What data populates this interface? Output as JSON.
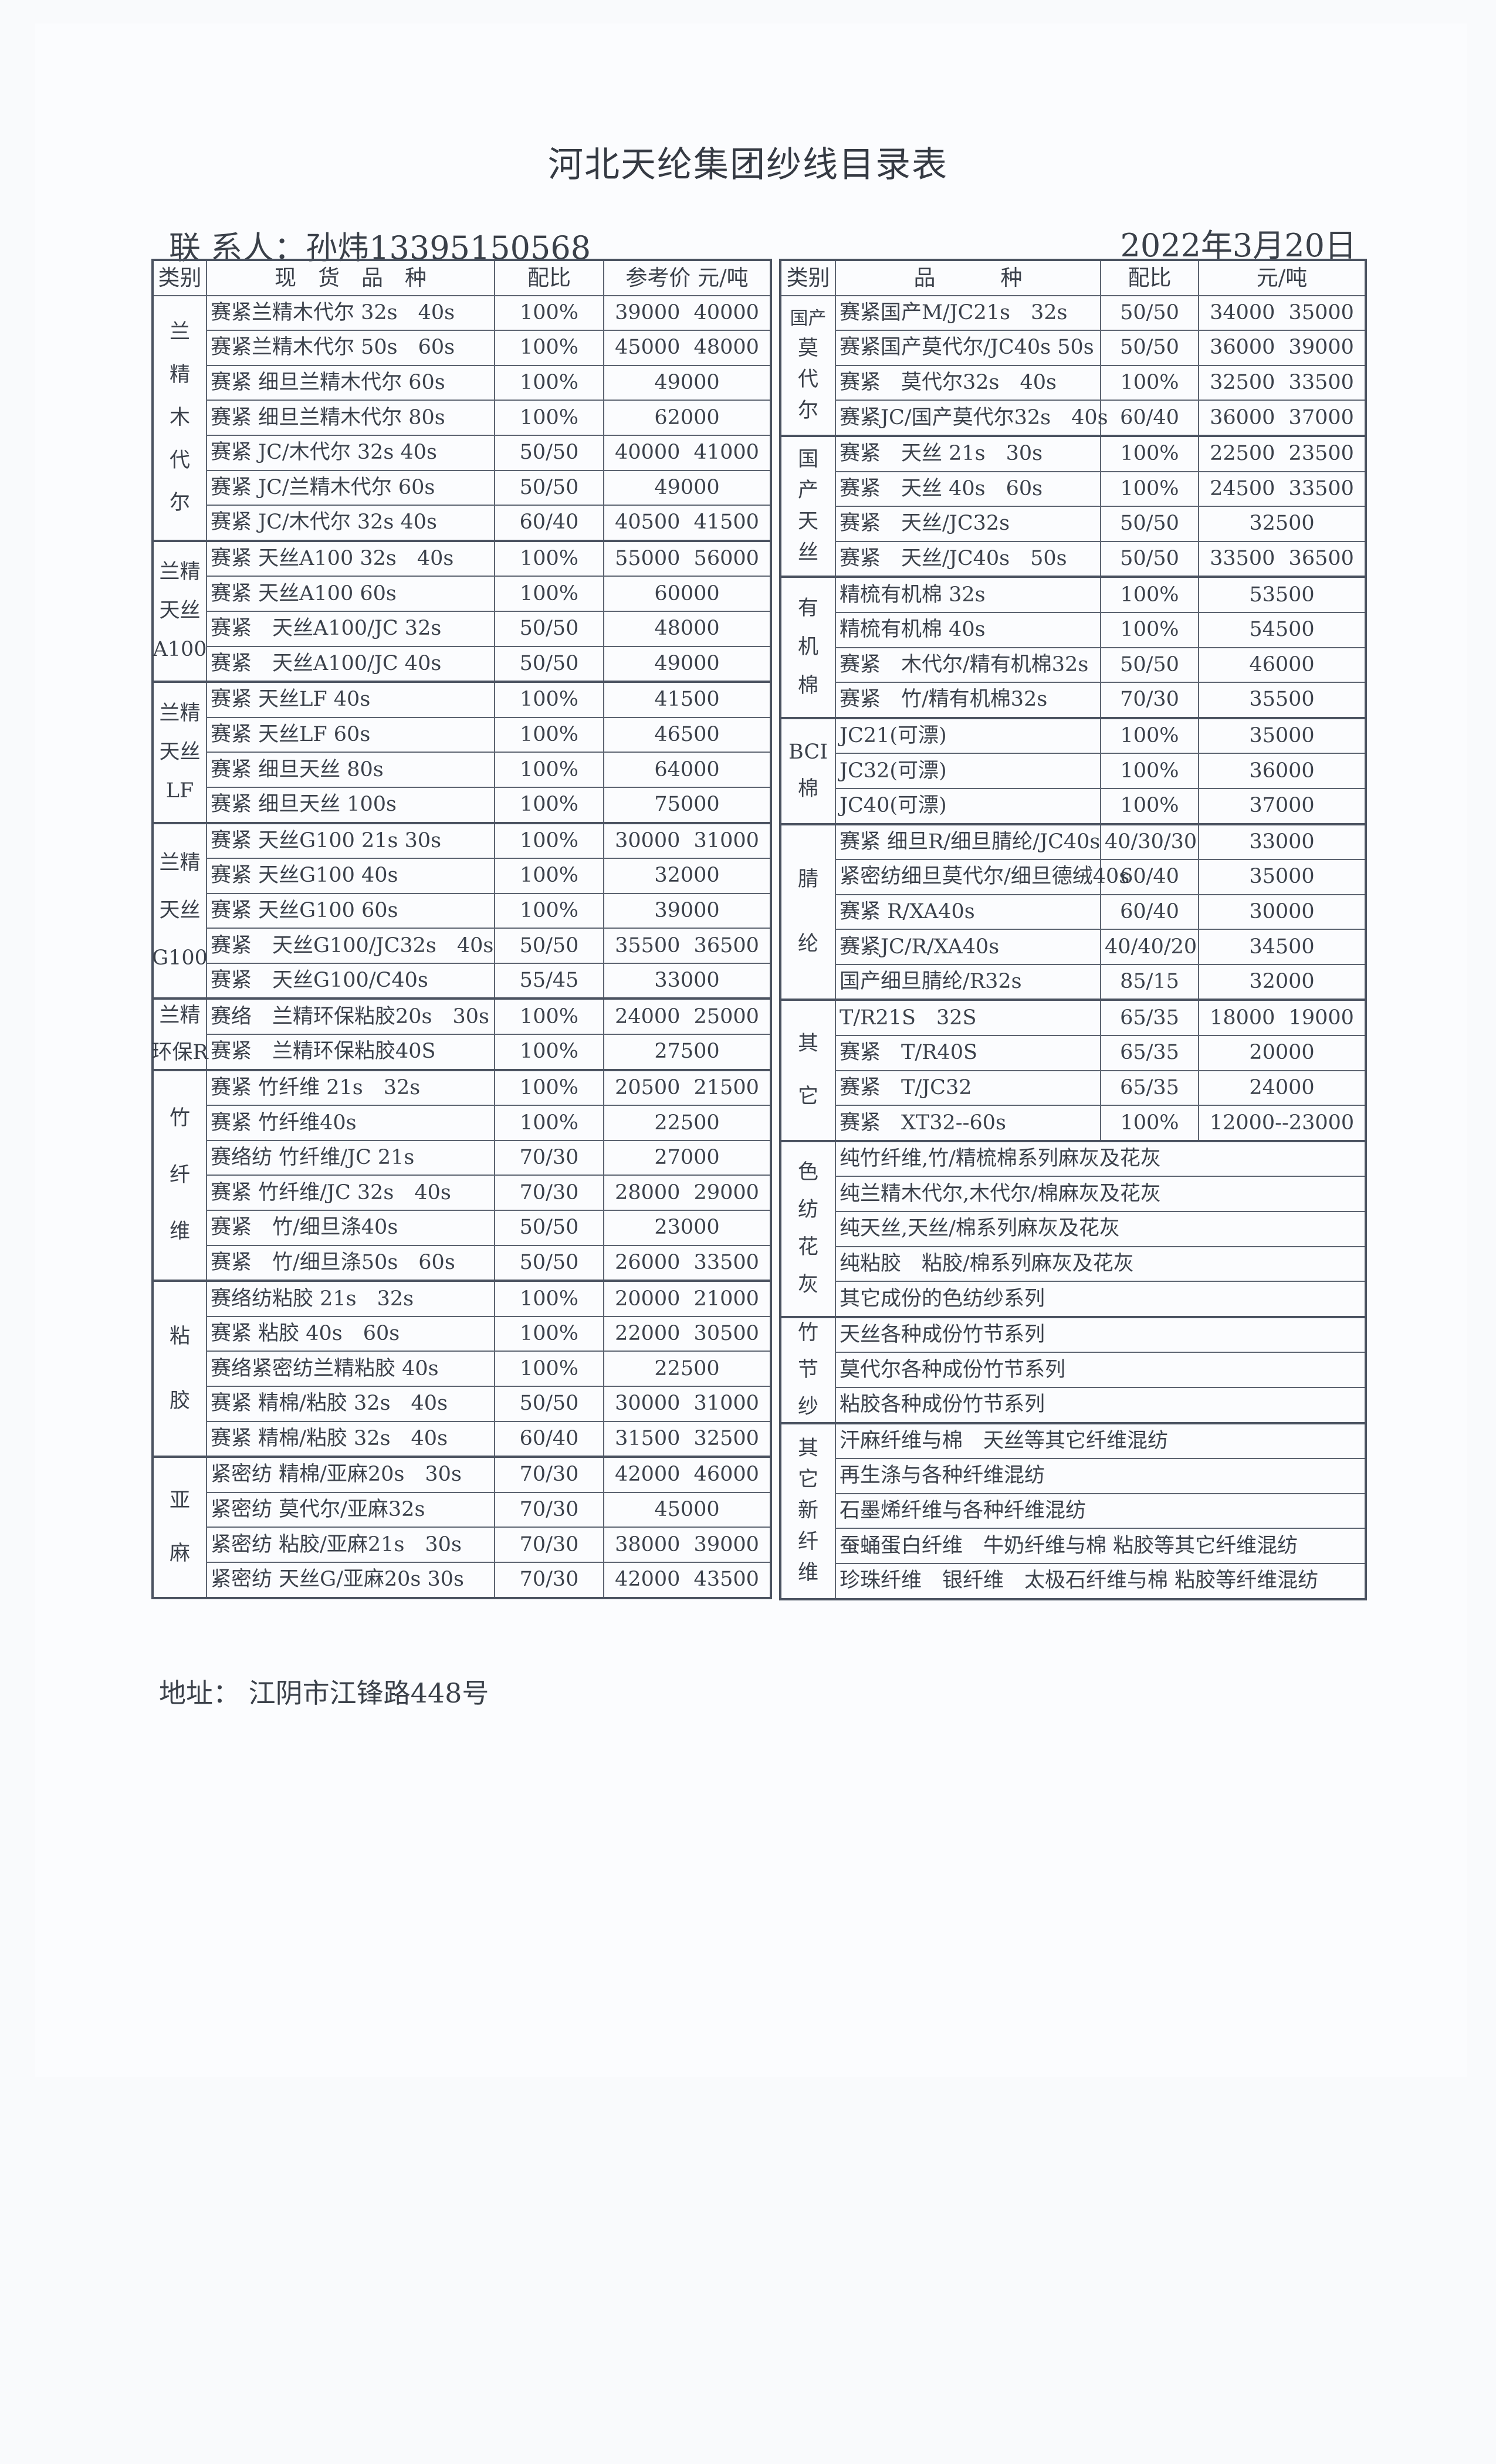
{
  "title": "河北天纶集团纱线目录表",
  "contact": "联 系人：孙炜13395150568",
  "date": "2022年3月20日",
  "address": "地址： 江阴市江锋路448号",
  "colors": {
    "text": "#3b414b",
    "lines": "#4b5361",
    "paper": "#f9fafc"
  },
  "left": {
    "headers": {
      "category": "类别",
      "item": "现　货　品　种",
      "ratio": "配比",
      "price": "参考价 元/吨"
    },
    "groups": [
      {
        "category": [
          "兰",
          "精",
          "木",
          "代",
          "尔"
        ],
        "rows": [
          {
            "item": "赛紧兰精木代尔 32s　40s",
            "ratio": "100%",
            "price": "39000 40000"
          },
          {
            "item": "赛紧兰精木代尔 50s　60s",
            "ratio": "100%",
            "price": "45000 48000"
          },
          {
            "item": "赛紧 细旦兰精木代尔 60s",
            "ratio": "100%",
            "price": "49000"
          },
          {
            "item": "赛紧 细旦兰精木代尔 80s",
            "ratio": "100%",
            "price": "62000"
          },
          {
            "item": "赛紧 JC/木代尔 32s 40s",
            "ratio": "50/50",
            "price": "40000 41000"
          },
          {
            "item": "赛紧 JC/兰精木代尔 60s",
            "ratio": "50/50",
            "price": "49000"
          },
          {
            "item": "赛紧 JC/木代尔 32s 40s",
            "ratio": "60/40",
            "price": "40500 41500"
          }
        ]
      },
      {
        "category": [
          "兰精",
          "天丝",
          "A100"
        ],
        "rows": [
          {
            "item": "赛紧 天丝A100 32s　40s",
            "ratio": "100%",
            "price": "55000 56000"
          },
          {
            "item": "赛紧 天丝A100 60s",
            "ratio": "100%",
            "price": "60000"
          },
          {
            "item": "赛紧　天丝A100/JC 32s",
            "ratio": "50/50",
            "price": "48000"
          },
          {
            "item": "赛紧　天丝A100/JC 40s",
            "ratio": "50/50",
            "price": "49000"
          }
        ]
      },
      {
        "category": [
          "兰精",
          "天丝",
          "LF"
        ],
        "rows": [
          {
            "item": "赛紧 天丝LF 40s",
            "ratio": "100%",
            "price": "41500"
          },
          {
            "item": "赛紧 天丝LF 60s",
            "ratio": "100%",
            "price": "46500"
          },
          {
            "item": "赛紧 细旦天丝 80s",
            "ratio": "100%",
            "price": "64000"
          },
          {
            "item": "赛紧 细旦天丝 100s",
            "ratio": "100%",
            "price": "75000"
          }
        ]
      },
      {
        "category": [
          "兰精",
          "天丝",
          "G100"
        ],
        "rows": [
          {
            "item": "赛紧 天丝G100 21s 30s",
            "ratio": "100%",
            "price": "30000 31000"
          },
          {
            "item": "赛紧 天丝G100 40s",
            "ratio": "100%",
            "price": "32000"
          },
          {
            "item": "赛紧 天丝G100 60s",
            "ratio": "100%",
            "price": "39000"
          },
          {
            "item": "赛紧　天丝G100/JC32s　40s",
            "ratio": "50/50",
            "price": "35500 36500"
          },
          {
            "item": "赛紧　天丝G100/C40s",
            "ratio": "55/45",
            "price": "33000"
          }
        ]
      },
      {
        "category": [
          "兰精",
          "环保R"
        ],
        "rows": [
          {
            "item": "赛络　兰精环保粘胶20s　30s",
            "ratio": "100%",
            "price": "24000 25000"
          },
          {
            "item": "赛紧　兰精环保粘胶40S",
            "ratio": "100%",
            "price": "27500"
          }
        ]
      },
      {
        "category": [
          "竹",
          "纤",
          "维"
        ],
        "rows": [
          {
            "item": "赛紧 竹纤维 21s　32s",
            "ratio": "100%",
            "price": "20500 21500"
          },
          {
            "item": "赛紧 竹纤维40s",
            "ratio": "100%",
            "price": "22500"
          },
          {
            "item": "赛络纺 竹纤维/JC 21s",
            "ratio": "70/30",
            "price": "27000"
          },
          {
            "item": "赛紧 竹纤维/JC 32s　40s",
            "ratio": "70/30",
            "price": "28000 29000"
          },
          {
            "item": "赛紧　竹/细旦涤40s",
            "ratio": "50/50",
            "price": "23000"
          },
          {
            "item": "赛紧　竹/细旦涤50s　60s",
            "ratio": "50/50",
            "price": "26000 33500"
          }
        ]
      },
      {
        "category": [
          "粘",
          "胶"
        ],
        "rows": [
          {
            "item": "赛络纺粘胶 21s　32s",
            "ratio": "100%",
            "price": "20000 21000"
          },
          {
            "item": "赛紧 粘胶 40s　60s",
            "ratio": "100%",
            "price": "22000 30500"
          },
          {
            "item": "赛络紧密纺兰精粘胶 40s",
            "ratio": "100%",
            "price": "22500"
          },
          {
            "item": "赛紧 精棉/粘胶 32s　40s",
            "ratio": "50/50",
            "price": "30000 31000"
          },
          {
            "item": "赛紧 精棉/粘胶 32s　40s",
            "ratio": "60/40",
            "price": "31500 32500"
          }
        ]
      },
      {
        "category": [
          "亚",
          "麻"
        ],
        "rows": [
          {
            "item": "紧密纺 精棉/亚麻20s　30s",
            "ratio": "70/30",
            "price": "42000 46000"
          },
          {
            "item": "紧密纺 莫代尔/亚麻32s",
            "ratio": "70/30",
            "price": "45000"
          },
          {
            "item": "紧密纺 粘胶/亚麻21s　30s",
            "ratio": "70/30",
            "price": "38000 39000"
          },
          {
            "item": "紧密纺 天丝G/亚麻20s 30s",
            "ratio": "70/30",
            "price": "42000 43500"
          }
        ]
      }
    ]
  },
  "right": {
    "headers": {
      "category": "类别",
      "item": "品　　　种",
      "ratio": "配比",
      "price": "元/吨"
    },
    "groups": [
      {
        "category": [
          "国产",
          "莫",
          "代",
          "尔"
        ],
        "rows": [
          {
            "item": "赛紧国产M/JC21s　32s",
            "ratio": "50/50",
            "price": "34000 35000"
          },
          {
            "item": "赛紧国产莫代尔/JC40s 50s",
            "ratio": "50/50",
            "price": "36000 39000"
          },
          {
            "item": "赛紧　莫代尔32s　40s",
            "ratio": "100%",
            "price": "32500 33500"
          },
          {
            "item": "赛紧JC/国产莫代尔32s　40s",
            "ratio": "60/40",
            "price": "36000 37000"
          }
        ]
      },
      {
        "category": [
          "国",
          "产",
          "天",
          "丝"
        ],
        "rows": [
          {
            "item": "赛紧　天丝 21s　30s",
            "ratio": "100%",
            "price": "22500 23500"
          },
          {
            "item": "赛紧　天丝 40s　60s",
            "ratio": "100%",
            "price": "24500 33500"
          },
          {
            "item": "赛紧　天丝/JC32s",
            "ratio": "50/50",
            "price": "32500"
          },
          {
            "item": "赛紧　天丝/JC40s　50s",
            "ratio": "50/50",
            "price": "33500 36500"
          }
        ]
      },
      {
        "category": [
          "有",
          "机",
          "棉"
        ],
        "rows": [
          {
            "item": "精梳有机棉 32s",
            "ratio": "100%",
            "price": "53500"
          },
          {
            "item": "精梳有机棉 40s",
            "ratio": "100%",
            "price": "54500"
          },
          {
            "item": "赛紧　木代尔/精有机棉32s",
            "ratio": "50/50",
            "price": "46000"
          },
          {
            "item": "赛紧　竹/精有机棉32s",
            "ratio": "70/30",
            "price": "35500"
          }
        ]
      },
      {
        "category": [
          "BCI",
          "棉"
        ],
        "rows": [
          {
            "item": "JC21(可漂)",
            "ratio": "100%",
            "price": "35000"
          },
          {
            "item": "JC32(可漂)",
            "ratio": "100%",
            "price": "36000"
          },
          {
            "item": "JC40(可漂)",
            "ratio": "100%",
            "price": "37000"
          }
        ]
      },
      {
        "category": [
          "腈",
          "纶"
        ],
        "rows": [
          {
            "item": "赛紧 细旦R/细旦腈纶/JC40s",
            "ratio": "40/30/30",
            "price": "33000"
          },
          {
            "item": "紧密纺细旦莫代尔/细旦德绒40s",
            "ratio": "60/40",
            "price": "35000"
          },
          {
            "item": "赛紧 R/XA40s",
            "ratio": "60/40",
            "price": "30000"
          },
          {
            "item": "赛紧JC/R/XA40s",
            "ratio": "40/40/20",
            "price": "34500"
          },
          {
            "item": "国产细旦腈纶/R32s",
            "ratio": "85/15",
            "price": "32000"
          }
        ]
      },
      {
        "category": [
          "其",
          "它"
        ],
        "rows": [
          {
            "item": "T/R21S　32S",
            "ratio": "65/35",
            "price": "18000 19000"
          },
          {
            "item": "赛紧　T/R40S",
            "ratio": "65/35",
            "price": "20000"
          },
          {
            "item": "赛紧　T/JC32",
            "ratio": "65/35",
            "price": "24000"
          },
          {
            "item": "赛紧　XT32--60s",
            "ratio": "100%",
            "price": "12000--23000"
          }
        ]
      },
      {
        "category": [
          "色",
          "纺",
          "花",
          "灰"
        ],
        "rows": [
          {
            "item": "纯竹纤维,竹/精梳棉系列麻灰及花灰"
          },
          {
            "item": "纯兰精木代尔,木代尔/棉麻灰及花灰"
          },
          {
            "item": "纯天丝,天丝/棉系列麻灰及花灰"
          },
          {
            "item": "纯粘胶　粘胶/棉系列麻灰及花灰"
          },
          {
            "item": "其它成份的色纺纱系列"
          }
        ]
      },
      {
        "category": [
          "竹",
          "节",
          "纱"
        ],
        "rows": [
          {
            "item": "天丝各种成份竹节系列"
          },
          {
            "item": "莫代尔各种成份竹节系列"
          },
          {
            "item": "粘胶各种成份竹节系列"
          }
        ]
      },
      {
        "category": [
          "其",
          "它",
          "新",
          "纤",
          "维"
        ],
        "rows": [
          {
            "item": "汗麻纤维与棉　天丝等其它纤维混纺"
          },
          {
            "item": "再生涤与各种纤维混纺"
          },
          {
            "item": "石墨烯纤维与各种纤维混纺"
          },
          {
            "item": "蚕蛹蛋白纤维　牛奶纤维与棉 粘胶等其它纤维混纺"
          },
          {
            "item": "珍珠纤维　银纤维　太极石纤维与棉 粘胶等纤维混纺"
          }
        ]
      }
    ]
  }
}
